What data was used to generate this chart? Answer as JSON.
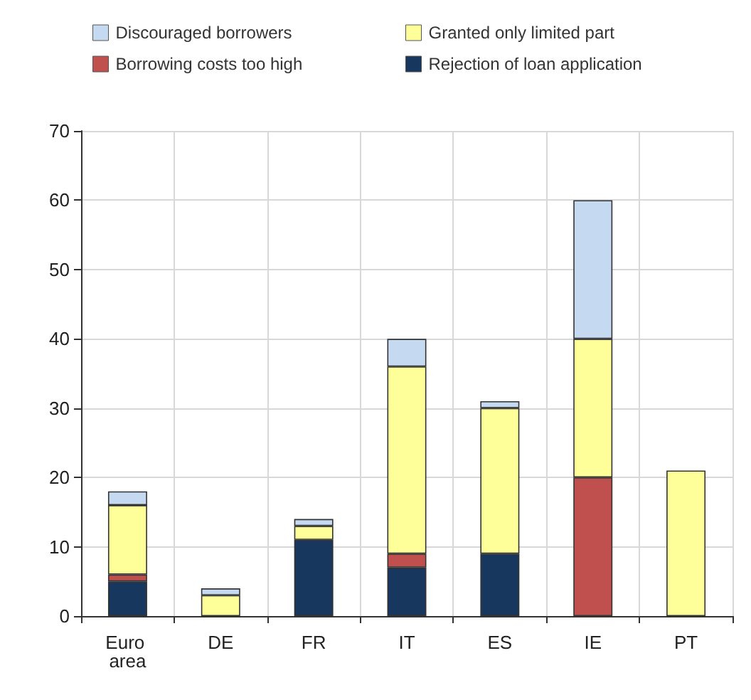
{
  "chart_data": {
    "type": "bar",
    "stacked": true,
    "categories": [
      "Euro area",
      "DE",
      "FR",
      "IT",
      "ES",
      "IE",
      "PT"
    ],
    "series": [
      {
        "name": "Rejection of loan application",
        "color": "#17375e",
        "values": [
          5,
          0,
          11,
          7,
          9,
          0,
          0
        ]
      },
      {
        "name": "Borrowing costs too high",
        "color": "#c0504d",
        "values": [
          1,
          0,
          0,
          2,
          0,
          20,
          0
        ]
      },
      {
        "name": "Granted only limited part",
        "color": "#ffff99",
        "values": [
          10,
          3,
          2,
          27,
          21,
          20,
          21
        ]
      },
      {
        "name": "Discouraged borrowers",
        "color": "#c5d9f1",
        "values": [
          2,
          1,
          1,
          4,
          1,
          20,
          0
        ]
      }
    ],
    "ylim": [
      0,
      70
    ],
    "yticks": [
      0,
      10,
      20,
      30,
      40,
      50,
      60,
      70
    ],
    "grid": true,
    "legend": "top"
  }
}
